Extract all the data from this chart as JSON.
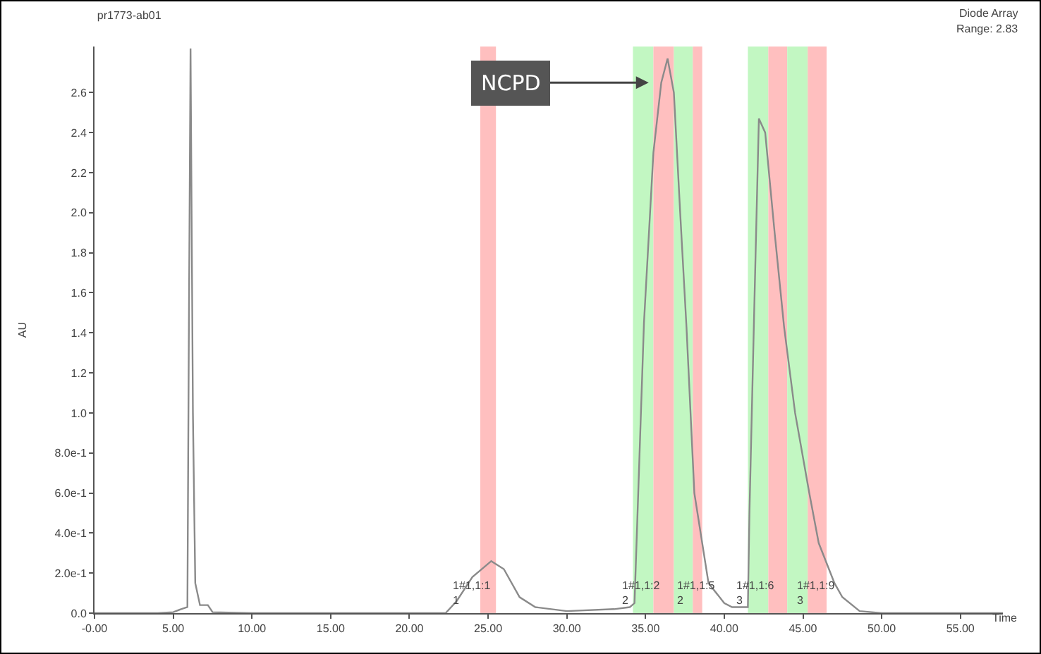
{
  "chart_data": {
    "type": "line",
    "title": "pr1773-ab01",
    "xlabel": "Time",
    "ylabel": "AU",
    "x": [
      0,
      2,
      4,
      5,
      5.5,
      5.9,
      6.0,
      6.1,
      6.25,
      6.4,
      6.7,
      7.2,
      7.5,
      10,
      15,
      20,
      22.3,
      23,
      24,
      25.2,
      26,
      27,
      28,
      30,
      33,
      34,
      34.3,
      34.9,
      35.5,
      36.0,
      36.4,
      36.8,
      37.2,
      37.6,
      38.1,
      39.0,
      40.0,
      40.5,
      41.5,
      41.6,
      41.9,
      42.2,
      42.6,
      43.2,
      43.8,
      44.5,
      45.4,
      46.0,
      47.0,
      47.5,
      48.6,
      50,
      55,
      57.7
    ],
    "series": [
      {
        "color": "#8a8a8a",
        "values": [
          0,
          0,
          0,
          0.005,
          0.02,
          0.03,
          1.5,
          2.82,
          1.0,
          0.15,
          0.04,
          0.04,
          0.005,
          0,
          0,
          0,
          0,
          0.06,
          0.18,
          0.26,
          0.22,
          0.08,
          0.03,
          0.01,
          0.02,
          0.03,
          0.05,
          1.45,
          2.3,
          2.65,
          2.77,
          2.6,
          2.0,
          1.43,
          0.6,
          0.15,
          0.05,
          0.03,
          0.03,
          0.5,
          1.5,
          2.47,
          2.4,
          1.9,
          1.43,
          1.0,
          0.6,
          0.35,
          0.15,
          0.08,
          0.01,
          0,
          0,
          0
        ]
      }
    ],
    "xlim": [
      0,
      57.7
    ],
    "ylim": [
      0,
      2.83
    ],
    "xticks": [
      {
        "value": 0,
        "label": "-0.00"
      },
      {
        "value": 5,
        "label": "5.00"
      },
      {
        "value": 10,
        "label": "10.00"
      },
      {
        "value": 15,
        "label": "15.00"
      },
      {
        "value": 20,
        "label": "20.00"
      },
      {
        "value": 25,
        "label": "25.00"
      },
      {
        "value": 30,
        "label": "30.00"
      },
      {
        "value": 35,
        "label": "35.00"
      },
      {
        "value": 40,
        "label": "40.00"
      },
      {
        "value": 45,
        "label": "45.00"
      },
      {
        "value": 50,
        "label": "50.00"
      },
      {
        "value": 55,
        "label": "55.00"
      }
    ],
    "yticks": [
      {
        "value": 0,
        "label": "0.0"
      },
      {
        "value": 0.2,
        "label": "2.0e-1"
      },
      {
        "value": 0.4,
        "label": "4.0e-1"
      },
      {
        "value": 0.6,
        "label": "6.0e-1"
      },
      {
        "value": 0.8,
        "label": "8.0e-1"
      },
      {
        "value": 1.0,
        "label": "1.0"
      },
      {
        "value": 1.2,
        "label": "1.2"
      },
      {
        "value": 1.4,
        "label": "1.4"
      },
      {
        "value": 1.6,
        "label": "1.6"
      },
      {
        "value": 1.8,
        "label": "1.8"
      },
      {
        "value": 2.0,
        "label": "2.0"
      },
      {
        "value": 2.2,
        "label": "2.2"
      },
      {
        "value": 2.4,
        "label": "2.4"
      },
      {
        "value": 2.6,
        "label": "2.6"
      }
    ],
    "marker": "none",
    "line_style": "solid",
    "bands": [
      {
        "axis": "x",
        "from": 24.5,
        "to": 25.5,
        "color": "#ffbfbf"
      },
      {
        "axis": "x",
        "from": 34.2,
        "to": 35.5,
        "color": "#c2f7c2"
      },
      {
        "axis": "x",
        "from": 35.5,
        "to": 36.8,
        "color": "#ffbfbf"
      },
      {
        "axis": "x",
        "from": 36.8,
        "to": 38.0,
        "color": "#c2f7c2"
      },
      {
        "axis": "x",
        "from": 38.0,
        "to": 38.6,
        "color": "#ffbfbf"
      },
      {
        "axis": "x",
        "from": 41.5,
        "to": 42.8,
        "color": "#c2f7c2"
      },
      {
        "axis": "x",
        "from": 42.8,
        "to": 44.0,
        "color": "#ffbfbf"
      },
      {
        "axis": "x",
        "from": 44.0,
        "to": 45.3,
        "color": "#c2f7c2"
      },
      {
        "axis": "x",
        "from": 45.3,
        "to": 46.5,
        "color": "#ffbfbf"
      }
    ],
    "annotations": [
      {
        "text": "NCPD",
        "x": 35.2,
        "y": 2.65
      },
      "Diode Array",
      "Range: 2.83",
      {
        "text": "1#1,1:1\n1",
        "x": 22.6,
        "y": 0.02
      },
      {
        "text": "1#1,1:2\n2",
        "x": 33.3,
        "y": 0.02
      },
      {
        "text": "1#1,1:5\n2",
        "x": 36.8,
        "y": 0.02
      },
      {
        "text": "1#1,1:6\n3",
        "x": 40.6,
        "y": 0.02
      },
      {
        "text": "1#1,1:9\n3",
        "x": 44.4,
        "y": 0.02
      }
    ]
  }
}
